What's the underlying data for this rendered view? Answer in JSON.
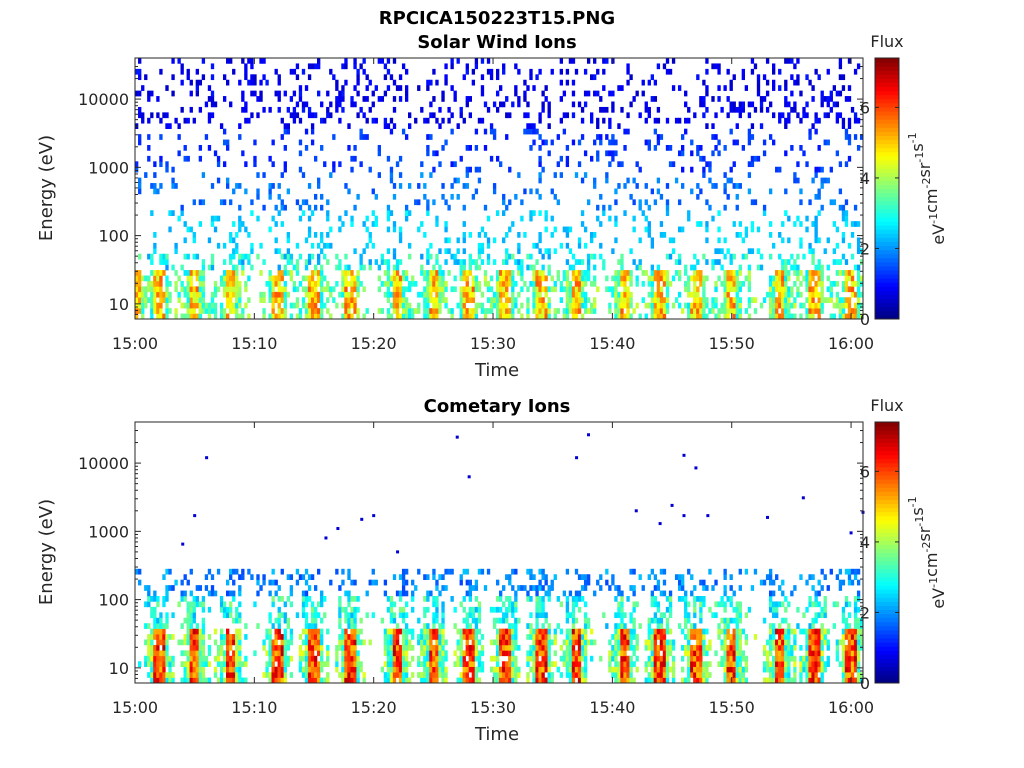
{
  "figure_title": "RPCICA150223T15.PNG",
  "chart_data": [
    {
      "type": "heatmap",
      "title": "Solar Wind Ions",
      "xlabel": "Time",
      "ylabel": "Energy (eV)",
      "x_ticks": [
        "15:00",
        "15:10",
        "15:20",
        "15:30",
        "15:40",
        "15:50",
        "16:00"
      ],
      "x_range": [
        "15:00",
        "16:01"
      ],
      "y_scale": "log",
      "y_ticks": [
        10,
        100,
        1000,
        10000
      ],
      "y_tick_labels": [
        "10",
        "100",
        "1000",
        "10000"
      ],
      "y_range": [
        6,
        40000
      ],
      "colorbar": {
        "title": "Flux",
        "label": "eV-1cm-2sr-1s-1",
        "range": [
          0,
          7.4
        ],
        "ticks": [
          0,
          2,
          4,
          6
        ],
        "colormap": "jet"
      },
      "peak_times": [
        "15:00",
        "15:02",
        "15:05",
        "15:08",
        "15:12",
        "15:15",
        "15:18",
        "15:22",
        "15:25",
        "15:28",
        "15:31",
        "15:34",
        "15:37",
        "15:41",
        "15:44",
        "15:47",
        "15:50",
        "15:54",
        "15:57",
        "16:00"
      ],
      "sparse_high_energy_background": true
    },
    {
      "type": "heatmap",
      "title": "Cometary Ions",
      "xlabel": "Time",
      "ylabel": "Energy (eV)",
      "x_ticks": [
        "15:00",
        "15:10",
        "15:20",
        "15:30",
        "15:40",
        "15:50",
        "16:00"
      ],
      "x_range": [
        "15:00",
        "16:01"
      ],
      "y_scale": "log",
      "y_ticks": [
        10,
        100,
        1000,
        10000
      ],
      "y_tick_labels": [
        "10",
        "100",
        "1000",
        "10000"
      ],
      "y_range": [
        6,
        40000
      ],
      "colorbar": {
        "title": "Flux",
        "label": "eV-1cm-2sr-1s-1",
        "range": [
          0,
          7.4
        ],
        "ticks": [
          0,
          2,
          4,
          6
        ],
        "colormap": "jet"
      },
      "peak_times": [
        "15:02",
        "15:05",
        "15:08",
        "15:12",
        "15:15",
        "15:18",
        "15:22",
        "15:25",
        "15:28",
        "15:31",
        "15:34",
        "15:37",
        "15:41",
        "15:44",
        "15:47",
        "15:50",
        "15:54",
        "15:57",
        "16:00"
      ],
      "isolated_high_energy_points": [
        {
          "time": "15:04",
          "energy": 650
        },
        {
          "time": "15:05",
          "energy": 1700
        },
        {
          "time": "15:06",
          "energy": 12000
        },
        {
          "time": "15:16",
          "energy": 800
        },
        {
          "time": "15:17",
          "energy": 1100
        },
        {
          "time": "15:19",
          "energy": 1500
        },
        {
          "time": "15:20",
          "energy": 1700
        },
        {
          "time": "15:22",
          "energy": 500
        },
        {
          "time": "15:27",
          "energy": 24000
        },
        {
          "time": "15:28",
          "energy": 6300
        },
        {
          "time": "15:37",
          "energy": 12000
        },
        {
          "time": "15:38",
          "energy": 26000
        },
        {
          "time": "15:42",
          "energy": 2000
        },
        {
          "time": "15:44",
          "energy": 1300
        },
        {
          "time": "15:45",
          "energy": 2400
        },
        {
          "time": "15:46",
          "energy": 1700
        },
        {
          "time": "15:46",
          "energy": 13000
        },
        {
          "time": "15:47",
          "energy": 8500
        },
        {
          "time": "15:48",
          "energy": 1700
        },
        {
          "time": "15:53",
          "energy": 1600
        },
        {
          "time": "15:56",
          "energy": 3100
        },
        {
          "time": "16:00",
          "energy": 950
        },
        {
          "time": "16:01",
          "energy": 1900
        }
      ]
    }
  ]
}
